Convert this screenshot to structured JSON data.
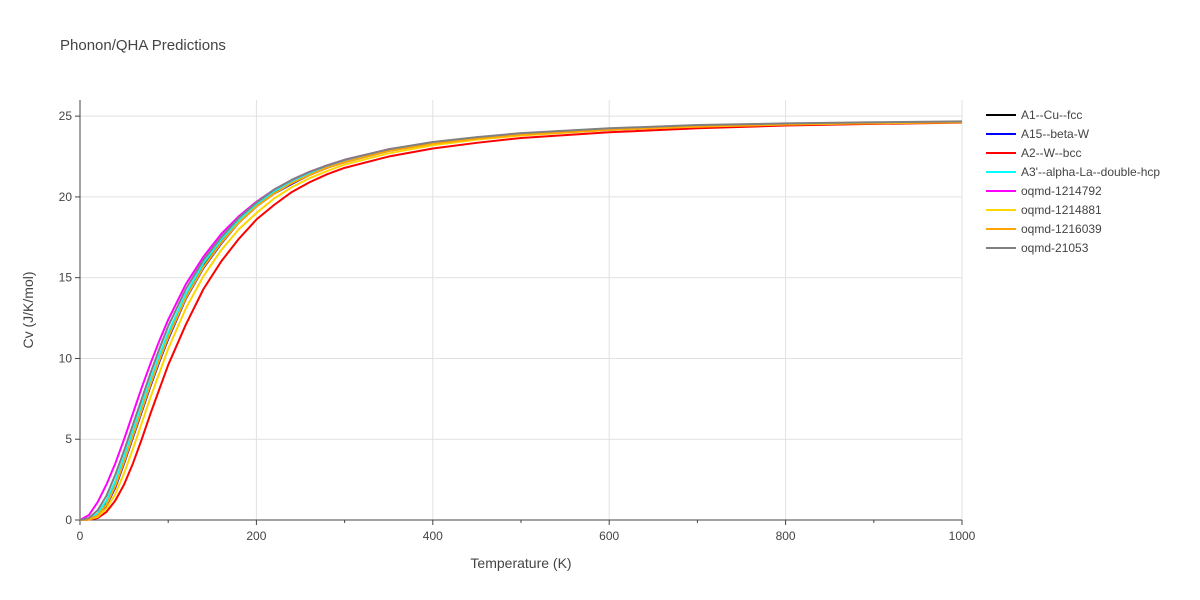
{
  "chart_data": {
    "type": "line",
    "title": "Phonon/QHA Predictions",
    "xlabel": "Temperature (K)",
    "ylabel": "Cv (J/K/mol)",
    "xlim": [
      0,
      1000
    ],
    "ylim": [
      0,
      26
    ],
    "x_ticks": [
      0,
      200,
      400,
      600,
      800,
      1000
    ],
    "y_ticks": [
      0,
      5,
      10,
      15,
      20,
      25
    ],
    "x_tick_labels": [
      "0",
      "200",
      "400",
      "600",
      "800",
      "1000"
    ],
    "y_tick_labels": [
      "0",
      "5",
      "10",
      "15",
      "20",
      "25"
    ],
    "grid": true,
    "legend_position": "right",
    "x": [
      0,
      10,
      20,
      30,
      40,
      50,
      60,
      70,
      80,
      90,
      100,
      120,
      140,
      160,
      180,
      200,
      220,
      240,
      260,
      280,
      300,
      350,
      400,
      450,
      500,
      600,
      700,
      800,
      900,
      1000
    ],
    "series": [
      {
        "name": "A1--Cu--fcc",
        "color": "#000000",
        "values": [
          0,
          0.05,
          0.35,
          1.1,
          2.3,
          3.8,
          5.4,
          7.0,
          8.6,
          10.1,
          11.5,
          13.9,
          15.8,
          17.3,
          18.5,
          19.5,
          20.3,
          20.9,
          21.4,
          21.8,
          22.2,
          22.9,
          23.3,
          23.65,
          23.9,
          24.2,
          24.4,
          24.5,
          24.58,
          24.65
        ]
      },
      {
        "name": "A15--beta-W",
        "color": "#0000ff",
        "values": [
          0,
          0.03,
          0.25,
          0.9,
          2.0,
          3.5,
          5.1,
          6.7,
          8.3,
          9.8,
          11.2,
          13.7,
          15.6,
          17.1,
          18.4,
          19.4,
          20.2,
          20.8,
          21.35,
          21.8,
          22.15,
          22.85,
          23.3,
          23.6,
          23.85,
          24.15,
          24.35,
          24.5,
          24.57,
          24.63
        ]
      },
      {
        "name": "A2--W--bcc",
        "color": "#ff0000",
        "values": [
          0,
          0.02,
          0.12,
          0.5,
          1.2,
          2.2,
          3.5,
          5.0,
          6.6,
          8.1,
          9.6,
          12.1,
          14.3,
          16.0,
          17.4,
          18.6,
          19.5,
          20.3,
          20.9,
          21.4,
          21.8,
          22.5,
          23.0,
          23.35,
          23.65,
          24.0,
          24.25,
          24.42,
          24.52,
          24.6
        ]
      },
      {
        "name": "A3'--alpha-La--double-hcp",
        "color": "#00ffff",
        "values": [
          0,
          0.06,
          0.4,
          1.2,
          2.4,
          3.9,
          5.5,
          7.1,
          8.7,
          10.2,
          11.6,
          14.0,
          15.9,
          17.35,
          18.55,
          19.55,
          20.35,
          20.95,
          21.45,
          21.85,
          22.2,
          22.9,
          23.35,
          23.65,
          23.9,
          24.2,
          24.4,
          24.5,
          24.58,
          24.65
        ]
      },
      {
        "name": "oqmd-1214792",
        "color": "#ff00ff",
        "values": [
          0,
          0.3,
          1.1,
          2.2,
          3.5,
          5.0,
          6.6,
          8.2,
          9.7,
          11.1,
          12.4,
          14.6,
          16.3,
          17.7,
          18.8,
          19.7,
          20.45,
          21.05,
          21.55,
          21.95,
          22.3,
          22.95,
          23.35,
          23.65,
          23.9,
          24.2,
          24.4,
          24.5,
          24.58,
          24.64
        ]
      },
      {
        "name": "oqmd-1214881",
        "color": "#ffd700",
        "values": [
          0,
          0.03,
          0.2,
          0.7,
          1.6,
          2.9,
          4.4,
          6.0,
          7.6,
          9.1,
          10.6,
          13.1,
          15.1,
          16.7,
          18.0,
          19.0,
          19.9,
          20.6,
          21.15,
          21.6,
          22.0,
          22.7,
          23.2,
          23.55,
          23.8,
          24.15,
          24.35,
          24.48,
          24.56,
          24.62
        ]
      },
      {
        "name": "oqmd-1216039",
        "color": "#ffa500",
        "values": [
          0,
          0.04,
          0.28,
          0.95,
          2.1,
          3.6,
          5.2,
          6.8,
          8.4,
          9.9,
          11.3,
          13.75,
          15.65,
          17.15,
          18.4,
          19.4,
          20.2,
          20.85,
          21.35,
          21.8,
          22.15,
          22.85,
          23.3,
          23.6,
          23.85,
          24.15,
          24.38,
          24.5,
          24.58,
          24.64
        ]
      },
      {
        "name": "oqmd-21053",
        "color": "#808080",
        "values": [
          0,
          0.12,
          0.6,
          1.5,
          2.8,
          4.3,
          5.9,
          7.5,
          9.1,
          10.6,
          12.0,
          14.3,
          16.1,
          17.5,
          18.7,
          19.65,
          20.45,
          21.05,
          21.55,
          21.95,
          22.3,
          22.95,
          23.4,
          23.7,
          23.95,
          24.25,
          24.45,
          24.55,
          24.62,
          24.68
        ]
      }
    ]
  }
}
